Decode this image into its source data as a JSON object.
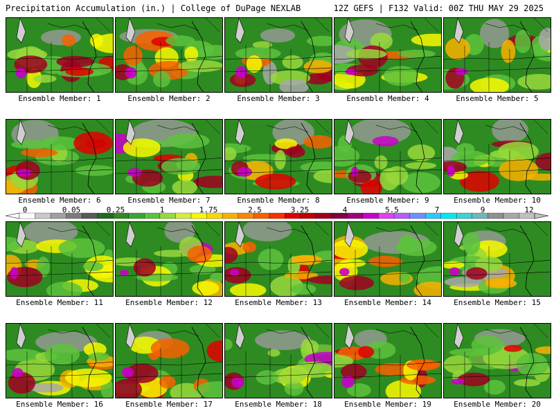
{
  "header": {
    "left": "Precipitation Accumulation (in.) | College of DuPage NEXLAB",
    "right": "12Z GEFS | F132 Valid: 00Z THU MAY 29 2025"
  },
  "panels": [
    {
      "label": "Ensemble Member: 1"
    },
    {
      "label": "Ensemble Member: 2"
    },
    {
      "label": "Ensemble Member: 3"
    },
    {
      "label": "Ensemble Member: 4"
    },
    {
      "label": "Ensemble Member: 5"
    },
    {
      "label": "Ensemble Member: 6"
    },
    {
      "label": "Ensemble Member: 7"
    },
    {
      "label": "Ensemble Member: 8"
    },
    {
      "label": "Ensemble Member: 9"
    },
    {
      "label": "Ensemble Member: 10"
    },
    {
      "label": "Ensemble Member: 11"
    },
    {
      "label": "Ensemble Member: 12"
    },
    {
      "label": "Ensemble Member: 13"
    },
    {
      "label": "Ensemble Member: 14"
    },
    {
      "label": "Ensemble Member: 15"
    },
    {
      "label": "Ensemble Member: 16"
    },
    {
      "label": "Ensemble Member: 17"
    },
    {
      "label": "Ensemble Member: 18"
    },
    {
      "label": "Ensemble Member: 19"
    },
    {
      "label": "Ensemble Member: 20"
    }
  ],
  "scale": {
    "ticks": [
      "0",
      "0.05",
      "0.25",
      "1",
      "1.75",
      "2.5",
      "3.25",
      "4",
      "5.5",
      "7",
      "9",
      "12"
    ],
    "colors": [
      "#ffffff",
      "#c8c8c8",
      "#a0a0a0",
      "#7c7c7c",
      "#5a5a5a",
      "#1e6b1e",
      "#2e8b22",
      "#3ca532",
      "#5cc23c",
      "#98d83c",
      "#d8ec3c",
      "#f8f800",
      "#f8d800",
      "#f8b000",
      "#f88800",
      "#f86000",
      "#f83000",
      "#e00000",
      "#c00000",
      "#a00020",
      "#800040",
      "#a00080",
      "#c800c8",
      "#e040f0",
      "#b060f8",
      "#7090f8",
      "#30c8f8",
      "#00e8f0",
      "#40d0d0",
      "#70b8b8",
      "#909090",
      "#a8a8a8",
      "#c0c0c0"
    ]
  }
}
